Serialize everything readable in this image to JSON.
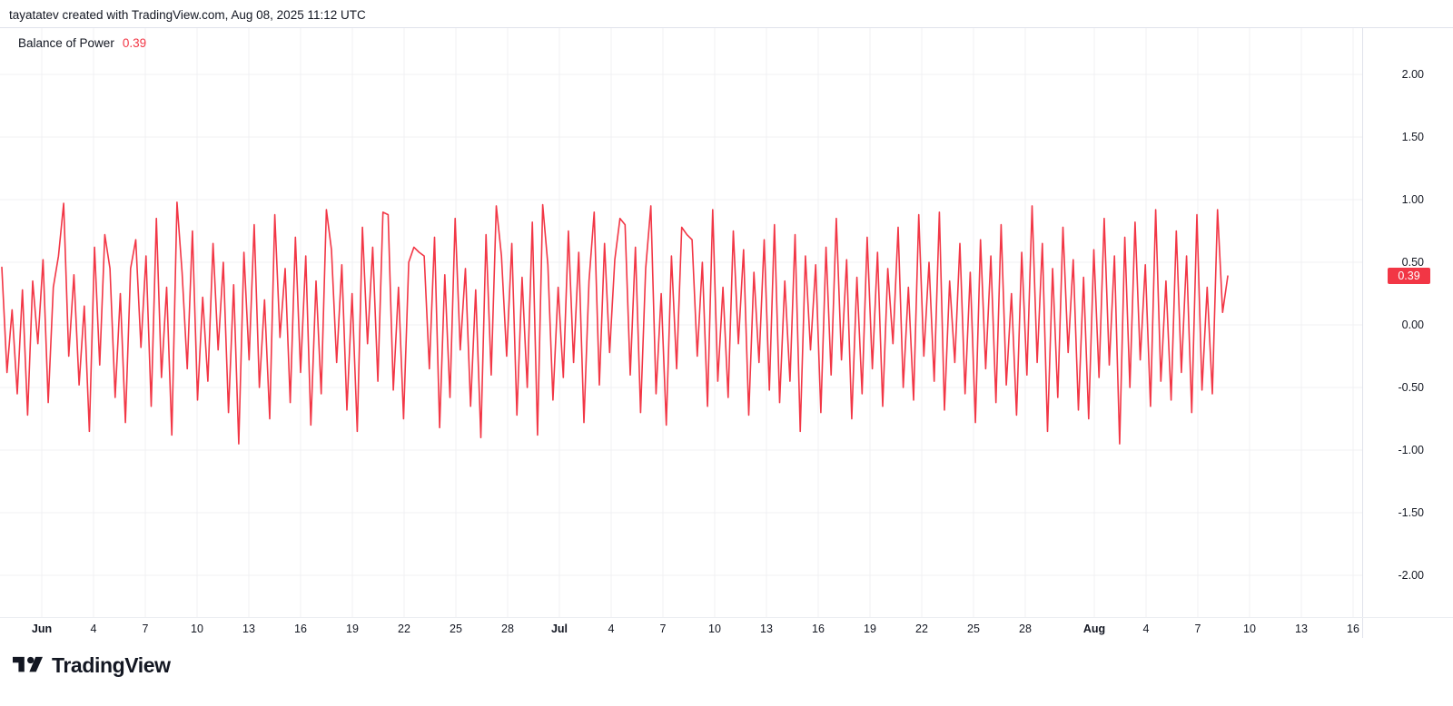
{
  "header": {
    "attribution": "tayatatev created with TradingView.com, Aug 08, 2025 11:12 UTC"
  },
  "legend": {
    "indicator": "Balance of Power",
    "value": "0.39"
  },
  "price_scale": {
    "labels": [
      "2.00",
      "1.50",
      "1.00",
      "0.50",
      "0.00",
      "-0.50",
      "-1.00",
      "-1.50",
      "-2.00"
    ],
    "badge": "0.39"
  },
  "time_scale": {
    "ticks": [
      {
        "label": "Jun",
        "day": 0,
        "bold": true
      },
      {
        "label": "4",
        "day": 3
      },
      {
        "label": "7",
        "day": 6
      },
      {
        "label": "10",
        "day": 9
      },
      {
        "label": "13",
        "day": 12
      },
      {
        "label": "16",
        "day": 15
      },
      {
        "label": "19",
        "day": 18
      },
      {
        "label": "22",
        "day": 21
      },
      {
        "label": "25",
        "day": 24
      },
      {
        "label": "28",
        "day": 27
      },
      {
        "label": "Jul",
        "day": 30,
        "bold": true
      },
      {
        "label": "4",
        "day": 33
      },
      {
        "label": "7",
        "day": 36
      },
      {
        "label": "10",
        "day": 39
      },
      {
        "label": "13",
        "day": 42
      },
      {
        "label": "16",
        "day": 45
      },
      {
        "label": "19",
        "day": 48
      },
      {
        "label": "22",
        "day": 51
      },
      {
        "label": "25",
        "day": 54
      },
      {
        "label": "28",
        "day": 57
      },
      {
        "label": "Aug",
        "day": 61,
        "bold": true
      },
      {
        "label": "4",
        "day": 64
      },
      {
        "label": "7",
        "day": 67
      },
      {
        "label": "10",
        "day": 70
      },
      {
        "label": "13",
        "day": 73
      },
      {
        "label": "16",
        "day": 76
      }
    ]
  },
  "footer": {
    "brand": "TradingView"
  },
  "colors": {
    "line": "#F23645",
    "badge_bg": "#F23645",
    "badge_text": "#FFFFFF",
    "text": "#131722",
    "grid": "#F0F1F3",
    "border": "#E0E3EB",
    "background": "#FFFFFF"
  },
  "chart_data": {
    "type": "line",
    "title": "Balance of Power",
    "last_value": 0.39,
    "ylim": [
      -2.35,
      2.35
    ],
    "grid": true,
    "legend_position": "top-left",
    "y_ticks": [
      2.0,
      1.5,
      1.0,
      0.5,
      0.0,
      -0.5,
      -1.0,
      -1.5,
      -2.0
    ],
    "x_tick_labels": [
      "Jun",
      "4",
      "7",
      "10",
      "13",
      "16",
      "19",
      "22",
      "25",
      "28",
      "Jul",
      "4",
      "7",
      "10",
      "13",
      "16",
      "19",
      "22",
      "25",
      "28",
      "Aug",
      "4",
      "7",
      "10",
      "13",
      "16"
    ],
    "series": [
      {
        "name": "Balance of Power",
        "color": "#F23645",
        "values": [
          0.46,
          -0.38,
          0.12,
          -0.55,
          0.28,
          -0.72,
          0.35,
          -0.15,
          0.52,
          -0.62,
          0.3,
          0.55,
          0.97,
          -0.25,
          0.4,
          -0.48,
          0.15,
          -0.85,
          0.62,
          -0.32,
          0.72,
          0.45,
          -0.58,
          0.25,
          -0.78,
          0.45,
          0.68,
          -0.18,
          0.55,
          -0.65,
          0.85,
          -0.42,
          0.3,
          -0.88,
          0.98,
          0.42,
          -0.35,
          0.75,
          -0.6,
          0.22,
          -0.45,
          0.65,
          -0.2,
          0.5,
          -0.7,
          0.32,
          -0.95,
          0.58,
          -0.28,
          0.8,
          -0.5,
          0.2,
          -0.75,
          0.88,
          -0.1,
          0.45,
          -0.62,
          0.7,
          -0.38,
          0.55,
          -0.8,
          0.35,
          -0.55,
          0.92,
          0.6,
          -0.3,
          0.48,
          -0.68,
          0.25,
          -0.85,
          0.78,
          -0.15,
          0.62,
          -0.45,
          0.9,
          0.88,
          -0.52,
          0.3,
          -0.75,
          0.5,
          0.62,
          0.58,
          0.55,
          -0.35,
          0.7,
          -0.82,
          0.4,
          -0.58,
          0.85,
          -0.2,
          0.45,
          -0.65,
          0.28,
          -0.9,
          0.72,
          -0.4,
          0.95,
          0.55,
          -0.25,
          0.65,
          -0.72,
          0.38,
          -0.5,
          0.82,
          -0.88,
          0.96,
          0.48,
          -0.6,
          0.3,
          -0.42,
          0.75,
          -0.3,
          0.58,
          -0.78,
          0.35,
          0.9,
          -0.48,
          0.65,
          -0.22,
          0.52,
          0.85,
          0.8,
          -0.4,
          0.62,
          -0.7,
          0.45,
          0.95,
          -0.55,
          0.25,
          -0.8,
          0.55,
          -0.35,
          0.78,
          0.72,
          0.68,
          -0.25,
          0.5,
          -0.65,
          0.92,
          -0.45,
          0.3,
          -0.58,
          0.75,
          -0.15,
          0.6,
          -0.72,
          0.42,
          -0.3,
          0.68,
          -0.52,
          0.8,
          -0.62,
          0.35,
          -0.45,
          0.72,
          -0.85,
          0.55,
          -0.2,
          0.48,
          -0.7,
          0.62,
          -0.4,
          0.85,
          -0.28,
          0.52,
          -0.75,
          0.38,
          -0.55,
          0.7,
          -0.35,
          0.58,
          -0.65,
          0.45,
          -0.15,
          0.78,
          -0.5,
          0.3,
          -0.6,
          0.88,
          -0.25,
          0.5,
          -0.45,
          0.9,
          -0.68,
          0.35,
          -0.3,
          0.65,
          -0.55,
          0.42,
          -0.78,
          0.68,
          -0.35,
          0.55,
          -0.62,
          0.8,
          -0.48,
          0.25,
          -0.72,
          0.58,
          -0.4,
          0.95,
          -0.3,
          0.65,
          -0.85,
          0.45,
          -0.58,
          0.78,
          -0.22,
          0.52,
          -0.68,
          0.38,
          -0.75,
          0.6,
          -0.42,
          0.85,
          -0.32,
          0.55,
          -0.95,
          0.7,
          -0.5,
          0.82,
          -0.28,
          0.48,
          -0.65,
          0.92,
          -0.45,
          0.35,
          -0.6,
          0.75,
          -0.38,
          0.55,
          -0.7,
          0.88,
          -0.52,
          0.3,
          -0.55,
          0.92,
          0.1,
          0.39
        ]
      }
    ]
  }
}
